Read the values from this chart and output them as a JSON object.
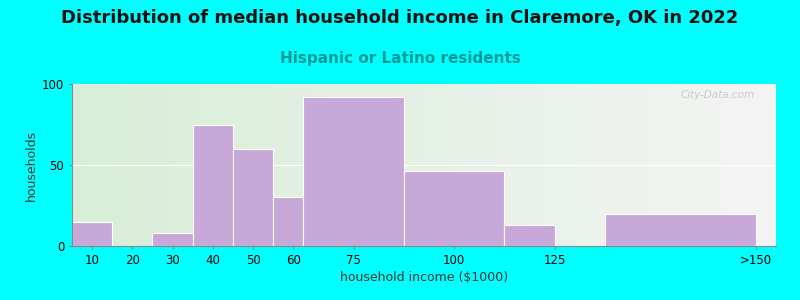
{
  "title": "Distribution of median household income in Claremore, OK in 2022",
  "subtitle": "Hispanic or Latino residents",
  "xlabel": "household income ($1000)",
  "ylabel": "households",
  "bar_lefts": [
    5,
    15,
    25,
    35,
    45,
    55,
    62.5,
    87.5,
    112.5,
    137.5
  ],
  "bar_widths": [
    10,
    10,
    10,
    10,
    10,
    7.5,
    25,
    25,
    12.5,
    37.5
  ],
  "bar_heights": [
    15,
    0,
    8,
    75,
    60,
    30,
    92,
    46,
    13,
    20
  ],
  "xtick_positions": [
    10,
    20,
    30,
    40,
    50,
    60,
    75,
    100,
    125,
    175
  ],
  "xtick_labels": [
    "10",
    "20",
    "30",
    "40",
    "50",
    "60",
    "75",
    "100",
    "125",
    ">150"
  ],
  "bar_color": "#C8A8D8",
  "ylim": [
    0,
    100
  ],
  "yticks": [
    0,
    50,
    100
  ],
  "xlim": [
    5,
    180
  ],
  "background_color": "#00FFFF",
  "title_fontsize": 13,
  "subtitle_fontsize": 11,
  "subtitle_color": "#009999",
  "axis_label_fontsize": 9,
  "tick_fontsize": 8.5,
  "watermark_text": "City-Data.com",
  "watermark_color": "#C0C0C0"
}
